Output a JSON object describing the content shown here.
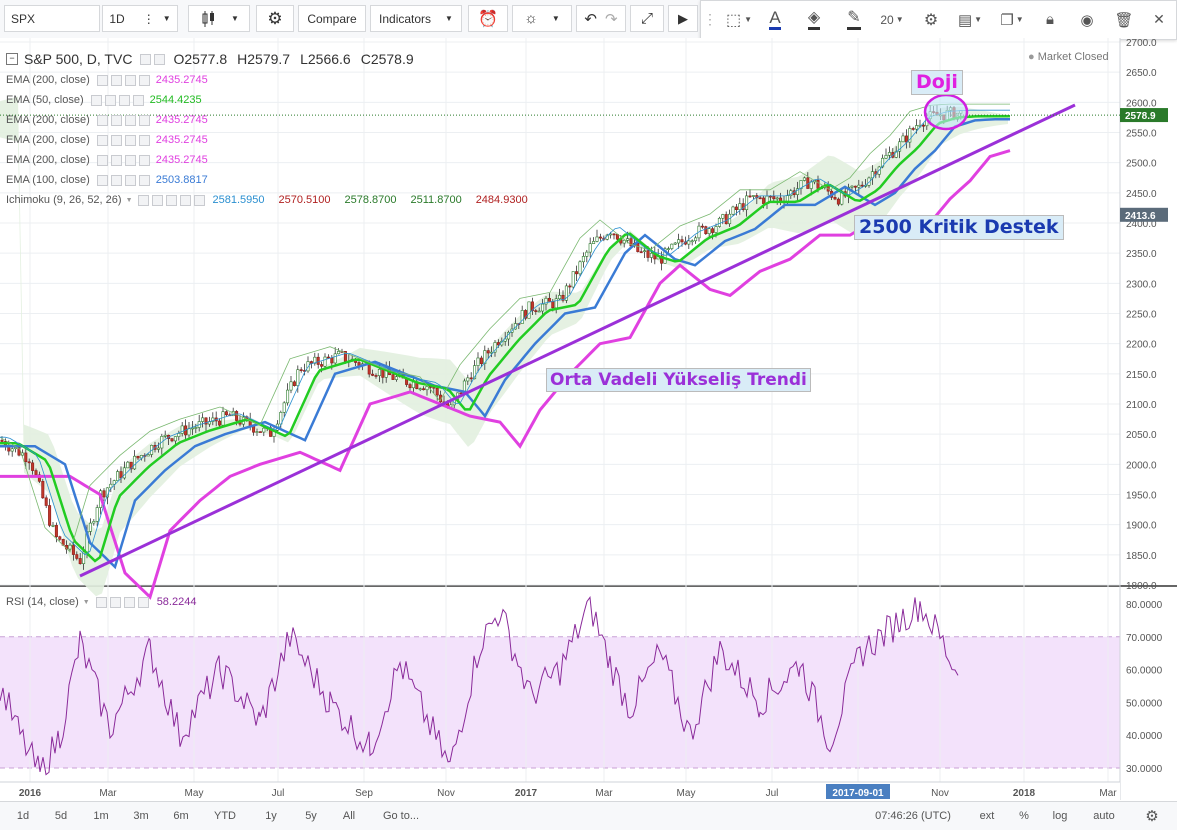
{
  "toolbar": {
    "symbol": "SPX",
    "interval": "1D",
    "compare": "Compare",
    "indicators": "Indicators",
    "font_size": "20"
  },
  "header": {
    "title": "S&P 500, D, TVC",
    "open": "O2577.8",
    "high": "H2579.7",
    "low": "L2566.6",
    "close": "C2578.9",
    "status": "Market Closed"
  },
  "studies": [
    {
      "label": "EMA (200, close)",
      "value": "2435.2745",
      "color": "#e040e0"
    },
    {
      "label": "EMA (50, close)",
      "value": "2544.4235",
      "color": "#22bb22"
    },
    {
      "label": "EMA (200, close)",
      "value": "2435.2745",
      "color": "#e040e0"
    },
    {
      "label": "EMA (200, close)",
      "value": "2435.2745",
      "color": "#e040e0"
    },
    {
      "label": "EMA (200, close)",
      "value": "2435.2745",
      "color": "#e040e0"
    },
    {
      "label": "EMA (100, close)",
      "value": "2503.8817",
      "color": "#3a7bd5"
    }
  ],
  "ichimoku": {
    "label": "Ichimoku (9, 26, 52, 26)",
    "values": [
      {
        "v": "2581.5950",
        "color": "#2a8fd0"
      },
      {
        "v": "2570.5100",
        "color": "#b02020"
      },
      {
        "v": "2578.8700",
        "color": "#2a7a2a"
      },
      {
        "v": "2511.8700",
        "color": "#2a7a2a"
      },
      {
        "v": "2484.9300",
        "color": "#b02020"
      }
    ]
  },
  "annotations": {
    "doji": "Doji",
    "support": "2500 Kritik Destek",
    "trend": "Orta Vadeli Yükseliş Trendi"
  },
  "rsi": {
    "label": "RSI (14, close)",
    "value": "58.2244",
    "axis": [
      "80.0000",
      "70.0000",
      "60.0000",
      "50.0000",
      "40.0000",
      "30.0000"
    ]
  },
  "price_axis": [
    "2700.0",
    "2650.0",
    "2600.0",
    "2550.0",
    "2500.0",
    "2450.0",
    "2400.0",
    "2350.0",
    "2300.0",
    "2250.0",
    "2200.0",
    "2150.0",
    "2100.0",
    "2050.0",
    "2000.0",
    "1950.0",
    "1900.0",
    "1850.0",
    "1800.0"
  ],
  "price_marks": {
    "last": "2578.9",
    "crosshair": "2413.6"
  },
  "time_axis": [
    "2016",
    "Mar",
    "May",
    "Jul",
    "Sep",
    "Nov",
    "2017",
    "Mar",
    "May",
    "Jul",
    "2017-09-01",
    "Nov",
    "2018",
    "Mar"
  ],
  "bottom": {
    "ranges": [
      "1d",
      "5d",
      "1m",
      "3m",
      "6m",
      "YTD",
      "1y",
      "5y",
      "All"
    ],
    "goto": "Go to...",
    "time": "07:46:26 (UTC)",
    "ext": "ext",
    "pct": "%",
    "log": "log",
    "auto": "auto"
  },
  "colors": {
    "ema200": "#e040e0",
    "ema50": "#22cc22",
    "ema100": "#3a7bd5",
    "trend": "#9b30d8",
    "rsi_band": "#f3e2fb",
    "rsi_line": "#8a2a9a",
    "doji_text": "#e020e0",
    "support_text": "#1a3ab0",
    "trend_text": "#9b30d8"
  }
}
